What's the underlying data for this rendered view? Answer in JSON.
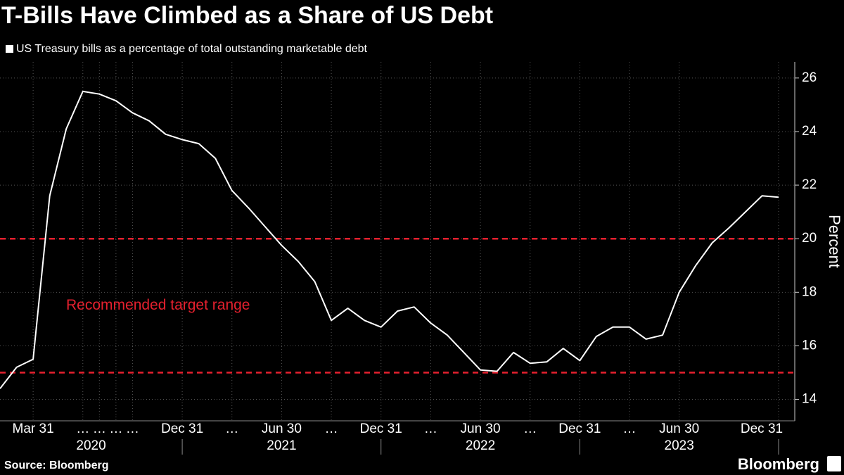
{
  "chart_data": {
    "type": "line",
    "title": "T-Bills Have Climbed as a Share of US Debt",
    "subtitle": "US Treasury bills as a percentage of total outstanding marketable debt",
    "y_axis_label": "Percent",
    "source": "Source: Bloomberg",
    "brand": "Bloomberg",
    "categories": [
      null,
      null,
      "Mar 31",
      null,
      null,
      "…",
      "…",
      "…",
      "…",
      null,
      null,
      "Dec 31",
      null,
      null,
      "…",
      null,
      null,
      "Jun 30",
      null,
      null,
      "…",
      null,
      null,
      "Dec 31",
      null,
      null,
      "…",
      null,
      null,
      "Jun 30",
      null,
      null,
      "…",
      null,
      null,
      "Dec 31",
      null,
      null,
      "…",
      null,
      null,
      "Jun 30",
      null,
      null,
      null,
      null,
      null,
      "Dec 31"
    ],
    "year_groups": [
      {
        "label": "2020",
        "start": 0,
        "end": 11
      },
      {
        "label": "2021",
        "start": 11,
        "end": 23
      },
      {
        "label": "2022",
        "start": 23,
        "end": 35
      },
      {
        "label": "2023",
        "start": 35,
        "end": 47
      }
    ],
    "series": [
      {
        "name": "US Treasury bills as a percentage of total outstanding marketable debt",
        "color": "#ffffff",
        "values": [
          14.4,
          15.2,
          15.5,
          21.6,
          24.1,
          25.5,
          25.4,
          25.15,
          24.7,
          24.4,
          23.9,
          23.7,
          23.55,
          23.0,
          21.8,
          21.15,
          20.45,
          19.75,
          19.15,
          18.4,
          16.95,
          17.4,
          16.95,
          16.7,
          17.3,
          17.45,
          16.85,
          16.4,
          15.75,
          15.1,
          15.05,
          15.75,
          15.35,
          15.4,
          15.9,
          15.45,
          16.35,
          16.7,
          16.7,
          16.25,
          16.4,
          18.0,
          19.0,
          19.85,
          20.4,
          21.0,
          21.6,
          21.55
        ]
      }
    ],
    "reference_lines": [
      {
        "value": 20,
        "color": "#e5202e"
      },
      {
        "value": 15,
        "color": "#e5202e"
      }
    ],
    "annotation": {
      "text": "Recommended target range",
      "value": 17.5,
      "color": "#e5202e"
    },
    "ylim": [
      13.2,
      26.6
    ],
    "yticks": [
      14,
      16,
      18,
      20,
      22,
      24,
      26
    ],
    "grid": true
  }
}
